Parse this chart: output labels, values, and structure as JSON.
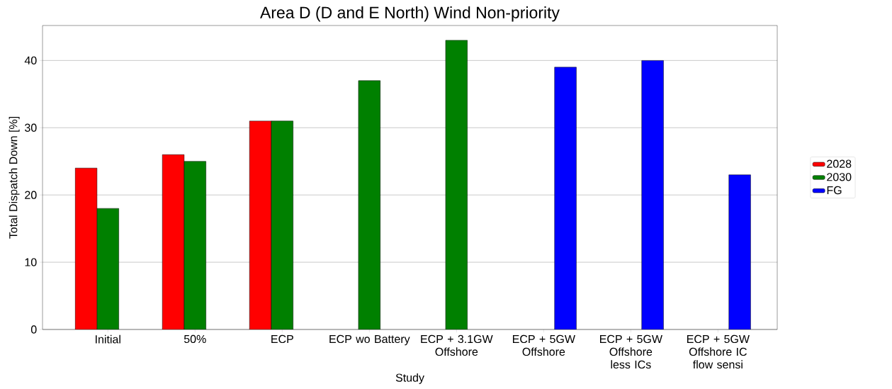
{
  "chart_data": {
    "type": "bar",
    "title": "Area D (D and E North) Wind Non-priority",
    "xlabel": "Study",
    "ylabel": "Total Dispatch Down [%]",
    "categories": [
      "Initial",
      "50%",
      "ECP",
      "ECP wo Battery",
      "ECP + 3.1GW Offshore",
      "ECP + 5GW Offshore",
      "ECP + 5GW Offshore less ICs",
      "ECP + 5GW Offshore IC flow sensi"
    ],
    "series": [
      {
        "name": "2028",
        "color": "#ff0000",
        "values": [
          24,
          26,
          31,
          null,
          null,
          null,
          null,
          null
        ]
      },
      {
        "name": "2030",
        "color": "#008000",
        "values": [
          18,
          25,
          31,
          37,
          43,
          null,
          null,
          null
        ]
      },
      {
        "name": "FG",
        "color": "#0000ff",
        "values": [
          null,
          null,
          null,
          null,
          null,
          39,
          40,
          23
        ]
      }
    ],
    "ylim": [
      0,
      45.2
    ],
    "yticks": [
      0,
      10,
      20,
      30,
      40
    ],
    "grid": "y",
    "legend": "right"
  }
}
